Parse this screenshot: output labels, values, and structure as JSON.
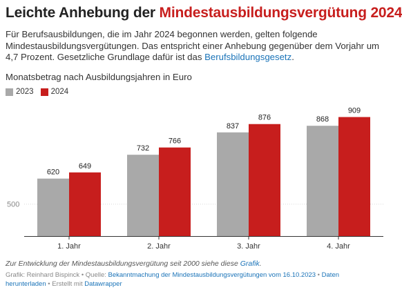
{
  "header": {
    "title_plain": "Leichte Anhebung der ",
    "title_highlight": "Mindestausbildungsvergütung 2024"
  },
  "description": {
    "text": "Für Berufsausbildungen, die im Jahr 2024 begonnen werden, gelten folgende Mindestausbildungsvergütungen. Das entspricht einer Anhebung gegenüber dem Vorjahr um 4,7 Prozent. Gesetzliche Grundlage dafür ist das ",
    "link": "Berufsbildungsgesetz",
    "end": "."
  },
  "chart_subtitle": "Monatsbetrag nach Ausbildungsjahren in Euro",
  "colors": {
    "series_2023": "#a9a9a9",
    "series_2024": "#c71e1d",
    "link": "#1a73b8"
  },
  "chart_data": {
    "type": "bar",
    "categories": [
      "1. Jahr",
      "2. Jahr",
      "3. Jahr",
      "4. Jahr"
    ],
    "series": [
      {
        "name": "2023",
        "values": [
          620,
          732,
          837,
          868
        ]
      },
      {
        "name": "2024",
        "values": [
          649,
          766,
          876,
          909
        ]
      }
    ],
    "ylabel": "",
    "yticks": [
      500
    ],
    "ylim": [
      350,
      950
    ],
    "grid": true,
    "legend": "top-left"
  },
  "note": {
    "text": "Zur Entwicklung der Mindestausbildungsvergütung seit 2000 siehe diese ",
    "link": "Grafik",
    "end": "."
  },
  "footer": {
    "prefix": "Grafik: Reinhard Bispinck • Quelle: ",
    "source_link": "Bekanntmachung der Mindestausbildungsvergütungen vom 16.10.2023",
    "sep": " • ",
    "download_link": "Daten herunterladen",
    "created": " • Erstellt mit ",
    "tool_link": "Datawrapper"
  }
}
